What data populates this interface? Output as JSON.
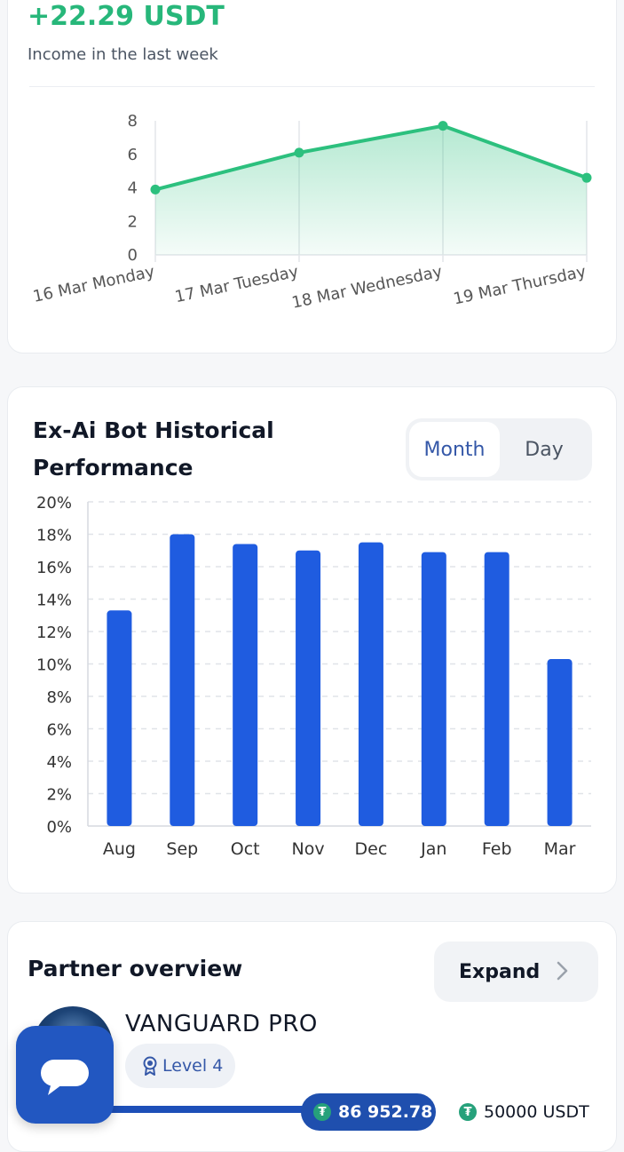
{
  "income": {
    "amount": "+22.29 USDT",
    "label": "Income in the last week",
    "chart_data": {
      "type": "area",
      "x": [
        "16 Mar Monday",
        "17 Mar Tuesday",
        "18 Mar Wednesday",
        "19 Mar Thursday"
      ],
      "values": [
        3.9,
        6.1,
        7.7,
        4.6
      ],
      "yticks": [
        "0",
        "2",
        "4",
        "6",
        "8"
      ],
      "ylim": [
        0,
        8
      ],
      "color": "#2cc07e"
    }
  },
  "performance": {
    "title": "Ex-Ai Bot Historical Performance",
    "toggle": {
      "month": "Month",
      "day": "Day",
      "selected": "Month"
    },
    "chart_data": {
      "type": "bar",
      "categories": [
        "Aug",
        "Sep",
        "Oct",
        "Nov",
        "Dec",
        "Jan",
        "Feb",
        "Mar"
      ],
      "values": [
        13.3,
        18.0,
        17.4,
        17.0,
        17.5,
        16.9,
        16.9,
        10.3
      ],
      "yticks": [
        "0%",
        "2%",
        "4%",
        "6%",
        "8%",
        "10%",
        "12%",
        "14%",
        "16%",
        "18%",
        "20%"
      ],
      "ylim": [
        0,
        20
      ],
      "color": "#1f5ce0"
    }
  },
  "partner": {
    "title": "Partner overview",
    "expand_label": "Expand",
    "rank_name": "VANGUARD PRO",
    "level": "Level 4",
    "balance": "86 952.78",
    "target": "50000 USDT"
  }
}
